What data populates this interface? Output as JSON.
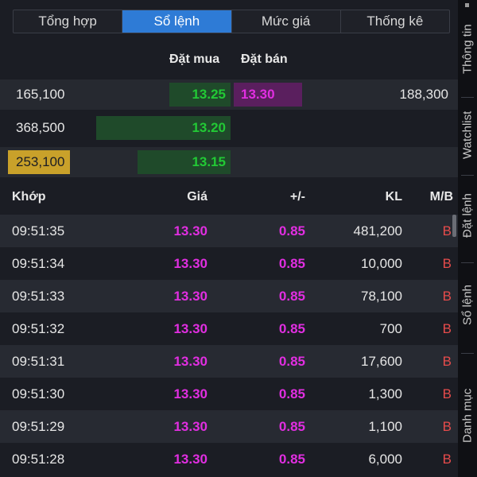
{
  "tabs": [
    {
      "label": "Tổng hợp",
      "active": false
    },
    {
      "label": "Sổ lệnh",
      "active": true
    },
    {
      "label": "Mức giá",
      "active": false
    },
    {
      "label": "Thống kê",
      "active": false
    }
  ],
  "side_tabs": [
    "Thông tin",
    "Watchlist",
    "Đặt lệnh",
    "Sổ lệnh",
    "Danh mục"
  ],
  "order_book": {
    "bid_header": "Đặt mua",
    "ask_header": "Đặt bán",
    "rows": [
      {
        "bid_volume": "165,100",
        "bid_price": "13.25",
        "ask_price": "13.30",
        "ask_volume": "188,300"
      },
      {
        "bid_volume": "368,500",
        "bid_price": "13.20",
        "ask_price": "",
        "ask_volume": ""
      },
      {
        "bid_volume": "253,100",
        "bid_price": "13.15",
        "ask_price": "",
        "ask_volume": ""
      }
    ]
  },
  "trades": {
    "headers": {
      "time": "Khớp",
      "price": "Giá",
      "change": "+/-",
      "volume": "KL",
      "side": "M/B"
    },
    "rows": [
      {
        "time": "09:51:35",
        "price": "13.30",
        "change": "0.85",
        "volume": "481,200",
        "side": "B"
      },
      {
        "time": "09:51:34",
        "price": "13.30",
        "change": "0.85",
        "volume": "10,000",
        "side": "B"
      },
      {
        "time": "09:51:33",
        "price": "13.30",
        "change": "0.85",
        "volume": "78,100",
        "side": "B"
      },
      {
        "time": "09:51:32",
        "price": "13.30",
        "change": "0.85",
        "volume": "700",
        "side": "B"
      },
      {
        "time": "09:51:31",
        "price": "13.30",
        "change": "0.85",
        "volume": "17,600",
        "side": "B"
      },
      {
        "time": "09:51:30",
        "price": "13.30",
        "change": "0.85",
        "volume": "1,300",
        "side": "B"
      },
      {
        "time": "09:51:29",
        "price": "13.30",
        "change": "0.85",
        "volume": "1,100",
        "side": "B"
      },
      {
        "time": "09:51:28",
        "price": "13.30",
        "change": "0.85",
        "volume": "6,000",
        "side": "B"
      }
    ]
  },
  "colors": {
    "buy_green": "#22c935",
    "ceiling_purple": "#e12ee1",
    "active_tab_blue": "#2e7bd6",
    "highlight_gold": "#c9a12a",
    "side_red": "#e64b4b"
  }
}
